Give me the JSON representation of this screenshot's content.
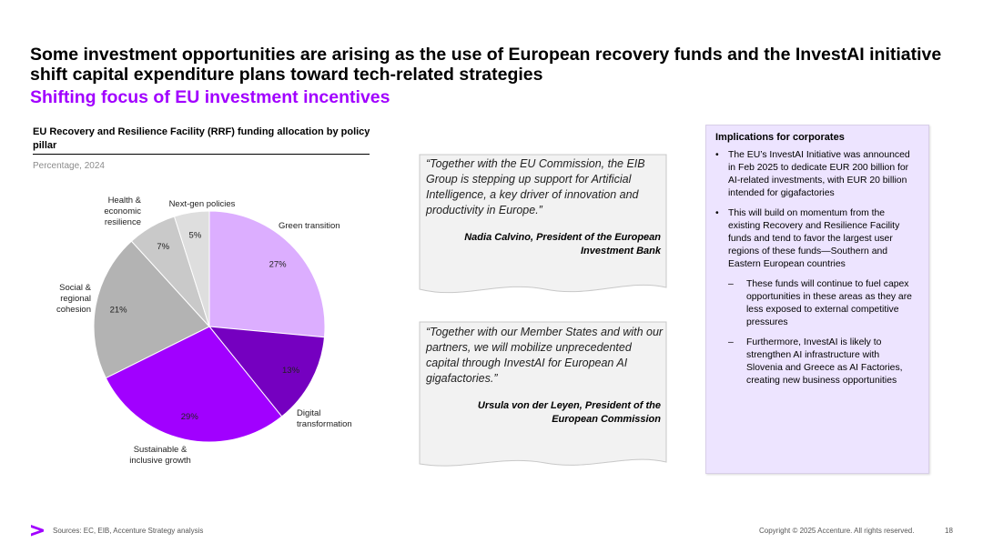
{
  "slide": {
    "title": "Some investment opportunities are arising as the use of European recovery funds and the InvestAI initiative shift capital expenditure plans toward tech-related strategies",
    "subtitle": "Shifting focus of EU investment incentives"
  },
  "chart_data": {
    "type": "pie",
    "title": "EU Recovery and Resilience Facility (RRF) funding allocation by policy pillar",
    "subtitle": "Percentage, 2024",
    "start_angle_deg": 0,
    "direction": "clockwise",
    "slices": [
      {
        "category_lines": [
          "Green transition"
        ],
        "value": 27,
        "label": "27%",
        "color": "#dcaeff"
      },
      {
        "category_lines": [
          "Digital",
          "transformation"
        ],
        "value": 13,
        "label": "13%",
        "color": "#7500c0"
      },
      {
        "category_lines": [
          "Sustainable &",
          "inclusive growth"
        ],
        "value": 29,
        "label": "29%",
        "color": "#a100ff"
      },
      {
        "category_lines": [
          "Social &",
          "regional",
          "cohesion"
        ],
        "value": 21,
        "label": "21%",
        "color": "#b3b3b3"
      },
      {
        "category_lines": [
          "Health &",
          "economic",
          "resilience"
        ],
        "value": 7,
        "label": "7%",
        "color": "#c9c9c9"
      },
      {
        "category_lines": [
          "Next-gen policies"
        ],
        "value": 5,
        "label": "5%",
        "color": "#dedede"
      }
    ]
  },
  "quotes": [
    {
      "text": "“Together with the EU Commission, the EIB Group is stepping up support for Artificial Intelligence, a key driver of innovation and productivity in Europe.”",
      "author": "Nadia Calvino, President of the European Investment Bank"
    },
    {
      "text": "“Together with our Member States and with our partners, we will mobilize unprecedented capital through InvestAI for European AI gigafactories.”",
      "author": "Ursula von der Leyen, President of the European Commission"
    }
  ],
  "implications": {
    "title": "Implications for corporates",
    "bullets": [
      {
        "level": 1,
        "marker": "•",
        "text": "The EU’s InvestAI Initiative was announced in Feb 2025 to dedicate EUR 200 billion for AI-related investments, with EUR 20 billion intended for gigafactories"
      },
      {
        "level": 1,
        "marker": "•",
        "text": "This will build on momentum from the existing Recovery and Resilience Facility funds and tend to favor the largest user regions of these funds—Southern and Eastern European countries"
      },
      {
        "level": 2,
        "marker": "–",
        "text": "These funds will continue to fuel capex opportunities in these areas as they are less exposed to external competitive pressures"
      },
      {
        "level": 2,
        "marker": "–",
        "text": "Furthermore, InvestAI is likely to strengthen AI infrastructure with Slovenia and Greece as AI Factories, creating new business opportunities"
      }
    ]
  },
  "footer": {
    "logo_icon": "accenture-greater-than-icon",
    "sources": "Sources: EC, EIB, Accenture Strategy analysis",
    "copyright": "Copyright © 2025 Accenture. All rights reserved.",
    "page": "18"
  }
}
